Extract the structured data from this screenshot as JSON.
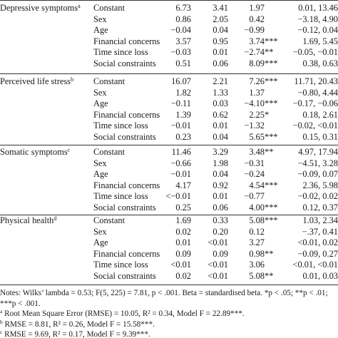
{
  "groups": [
    {
      "label": "Depressive symptoms",
      "sup": "a",
      "rows": [
        {
          "predictor": "Constant",
          "b": "6.73",
          "se": "3.41",
          "beta": "1.97",
          "stars": "",
          "ci": "0.01, 13.46"
        },
        {
          "predictor": "Sex",
          "b": "0.86",
          "se": "2.05",
          "beta": "0.42",
          "stars": "",
          "ci": "−3.18, 4.90"
        },
        {
          "predictor": "Age",
          "b": "−0.04",
          "se": "0.04",
          "beta": "−0.99",
          "stars": "",
          "ci": "−0.12, 0.04"
        },
        {
          "predictor": "Financial concerns",
          "b": "3.57",
          "se": "0.95",
          "beta": "3.74",
          "stars": "***",
          "ci": "1.69, 5.45"
        },
        {
          "predictor": "Time since loss",
          "b": "−0.03",
          "se": "0.01",
          "beta": "−2.74",
          "stars": "**",
          "ci": "−0.05, −0.01"
        },
        {
          "predictor": "Social constraints",
          "b": "0.51",
          "se": "0.06",
          "beta": "8.09",
          "stars": "***",
          "ci": "0.38, 0.63"
        }
      ]
    },
    {
      "label": "Perceived life stress",
      "sup": "b",
      "rows": [
        {
          "predictor": "Constant",
          "b": "16.07",
          "se": "2.21",
          "beta": "7.26",
          "stars": "***",
          "ci": "11.71, 20.43"
        },
        {
          "predictor": "Sex",
          "b": "1.82",
          "se": "1.33",
          "beta": "1.37",
          "stars": "",
          "ci": "−0.80, 4.44"
        },
        {
          "predictor": "Age",
          "b": "−0.11",
          "se": "0.03",
          "beta": "−4.10",
          "stars": "***",
          "ci": "−0.17, −0.06"
        },
        {
          "predictor": "Financial concerns",
          "b": "1.39",
          "se": "0.62",
          "beta": "2.25",
          "stars": "*",
          "ci": "0.18, 2.61"
        },
        {
          "predictor": "Time since loss",
          "b": "−0.01",
          "se": "0.01",
          "beta": "−1.32",
          "stars": "",
          "ci": "−0.02, <0.01"
        },
        {
          "predictor": "Social constraints",
          "b": "0.23",
          "se": "0.04",
          "beta": "5.65",
          "stars": "***",
          "ci": "0.15, 0.31"
        }
      ]
    },
    {
      "label": "Somatic symptoms",
      "sup": "c",
      "rows": [
        {
          "predictor": "Constant",
          "b": "11.46",
          "se": "3.29",
          "beta": "3.48",
          "stars": "**",
          "ci": "4.97, 17.94"
        },
        {
          "predictor": "Sex",
          "b": "−0.66",
          "se": "1.98",
          "beta": "−0.31",
          "stars": "",
          "ci": "−4.51, 3.28"
        },
        {
          "predictor": "Age",
          "b": "−0.01",
          "se": "0.04",
          "beta": "−0.24",
          "stars": "",
          "ci": "−0.09, 0.07"
        },
        {
          "predictor": "Financial concerns",
          "b": "4.17",
          "se": "0.92",
          "beta": "4.54",
          "stars": "***",
          "ci": "2.36, 5.98"
        },
        {
          "predictor": "Time since loss",
          "b": "<−0.01",
          "se": "0.01",
          "beta": "−0.77",
          "stars": "",
          "ci": "−0.02, 0.02"
        },
        {
          "predictor": "Social constraints",
          "b": "0.25",
          "se": "0.06",
          "beta": "4.00",
          "stars": "***",
          "ci": "0.12, 0.37"
        }
      ]
    },
    {
      "label": "Physical health",
      "sup": "d",
      "rows": [
        {
          "predictor": "Constant",
          "b": "1.69",
          "se": "0.33",
          "beta": "5.08",
          "stars": "***",
          "ci": "1.03, 2.34"
        },
        {
          "predictor": "Sex",
          "b": "0.02",
          "se": "0.20",
          "beta": "0.12",
          "stars": "",
          "ci": "−.37, 0.41"
        },
        {
          "predictor": "Age",
          "b": "0.01",
          "se": "<0.01",
          "beta": "3.27",
          "stars": "",
          "ci": "<0.01, 0.02"
        },
        {
          "predictor": "Financial concerns",
          "b": "0.09",
          "se": "0.09",
          "beta": "0.98",
          "stars": "**",
          "ci": "−0.09, 0.27"
        },
        {
          "predictor": "Time since loss",
          "b": "<0.01",
          "se": "<0.01",
          "beta": "3.06",
          "stars": "",
          "ci": "<0.01, <0.01"
        },
        {
          "predictor": "Social constraints",
          "b": "0.02",
          "se": "<0.01",
          "beta": "5.08",
          "stars": "**",
          "ci": "0.01, 0.03"
        }
      ]
    }
  ],
  "notes": {
    "line1": "Notes: Wilks’ lambda = 0.53; F(5, 225) = 7.81, p < .001. Beta = standardised beta. *p < .05; **p < .01;",
    "line2": "***p < .001.",
    "footnotes": [
      {
        "sup": "a",
        "text": " Root Mean Square Error (RMSE) = 10.05, R² = 0.34, Model F = 22.89***."
      },
      {
        "sup": "b",
        "text": " RMSE = 8.81, R² = 0.26, Model F = 15.58***."
      },
      {
        "sup": "c",
        "text": " RMSE = 9.69, R² = 0.17, Model F = 9.39***."
      }
    ]
  }
}
